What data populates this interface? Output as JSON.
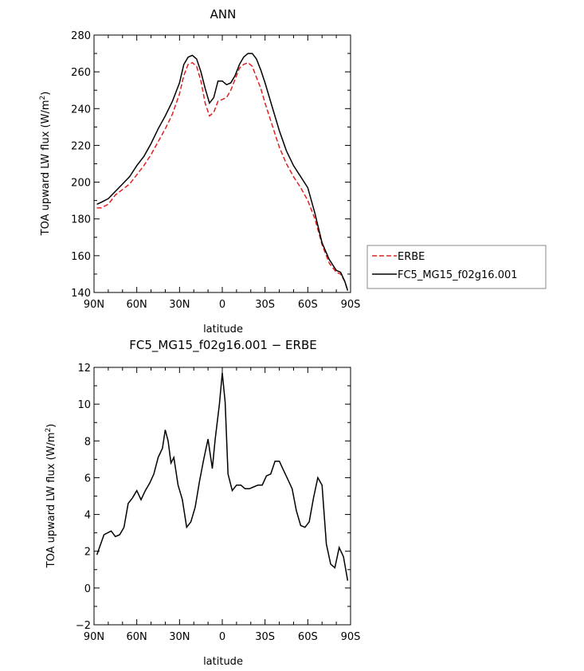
{
  "chart_data": [
    {
      "type": "line",
      "title": "ANN",
      "xlabel": "latitude",
      "ylabel": "TOA upward LW flux (W/m²)",
      "ylabel_main": "TOA upward LW flux (W/m",
      "ylabel_sup": "2",
      "ylabel_close": ")",
      "xlim": [
        90,
        -90
      ],
      "ylim": [
        140,
        280
      ],
      "xticks": [
        {
          "value": 90,
          "label": "90N"
        },
        {
          "value": 60,
          "label": "60N"
        },
        {
          "value": 30,
          "label": "30N"
        },
        {
          "value": 0,
          "label": "0"
        },
        {
          "value": -30,
          "label": "30S"
        },
        {
          "value": -60,
          "label": "60S"
        },
        {
          "value": -90,
          "label": "90S"
        }
      ],
      "yticks": [
        {
          "value": 140,
          "label": "140"
        },
        {
          "value": 160,
          "label": "160"
        },
        {
          "value": 180,
          "label": "180"
        },
        {
          "value": 200,
          "label": "200"
        },
        {
          "value": 220,
          "label": "220"
        },
        {
          "value": 240,
          "label": "240"
        },
        {
          "value": 260,
          "label": "260"
        },
        {
          "value": 280,
          "label": "280"
        }
      ],
      "legend_position": "right",
      "series": [
        {
          "name": "ERBE",
          "color": "#e02020",
          "dash": "dashed",
          "x": [
            88,
            85,
            80,
            75,
            70,
            65,
            60,
            55,
            50,
            45,
            40,
            35,
            30,
            27,
            24,
            21,
            18,
            15,
            12,
            9,
            6,
            3,
            0,
            -3,
            -6,
            -9,
            -12,
            -15,
            -18,
            -21,
            -24,
            -27,
            -30,
            -35,
            -40,
            -45,
            -50,
            -55,
            -60,
            -65,
            -70,
            -75,
            -80,
            -83,
            -86,
            -88
          ],
          "y": [
            186,
            186,
            188,
            193,
            196,
            199,
            204,
            209,
            215,
            222,
            229,
            237,
            248,
            258,
            264,
            265,
            263,
            255,
            243,
            236,
            238,
            244,
            245,
            246,
            250,
            256,
            262,
            264,
            265,
            263,
            257,
            251,
            243,
            231,
            219,
            210,
            203,
            197,
            190,
            180,
            166,
            156,
            151,
            150,
            146,
            141
          ]
        },
        {
          "name": "FC5_MG15_f02g16.001",
          "color": "#000000",
          "dash": "solid",
          "x": [
            88,
            85,
            80,
            75,
            70,
            65,
            60,
            55,
            50,
            45,
            40,
            35,
            30,
            27,
            24,
            21,
            18,
            15,
            12,
            9,
            6,
            3,
            0,
            -3,
            -6,
            -9,
            -12,
            -15,
            -18,
            -21,
            -24,
            -27,
            -30,
            -35,
            -40,
            -45,
            -50,
            -55,
            -60,
            -65,
            -70,
            -75,
            -80,
            -83,
            -86,
            -88
          ],
          "y": [
            188,
            189,
            191,
            195,
            199,
            203,
            209,
            214,
            221,
            229,
            236,
            244,
            254,
            264,
            268,
            269,
            267,
            260,
            251,
            243,
            246,
            255,
            255,
            253,
            254,
            258,
            264,
            268,
            270,
            270,
            267,
            261,
            254,
            241,
            228,
            217,
            209,
            203,
            197,
            183,
            167,
            158,
            152,
            151,
            146,
            141
          ]
        }
      ]
    },
    {
      "type": "line",
      "title": "FC5_MG15_f02g16.001 − ERBE",
      "xlabel": "latitude",
      "ylabel": "TOA upward LW flux (W/m²)",
      "ylabel_main": "TOA upward LW flux (W/m",
      "ylabel_sup": "2",
      "ylabel_close": ")",
      "xlim": [
        90,
        -90
      ],
      "ylim": [
        -2,
        12
      ],
      "xticks": [
        {
          "value": 90,
          "label": "90N"
        },
        {
          "value": 60,
          "label": "60N"
        },
        {
          "value": 30,
          "label": "30N"
        },
        {
          "value": 0,
          "label": "0"
        },
        {
          "value": -30,
          "label": "30S"
        },
        {
          "value": -60,
          "label": "60S"
        },
        {
          "value": -90,
          "label": "90S"
        }
      ],
      "yticks": [
        {
          "value": -2,
          "label": "−2"
        },
        {
          "value": 0,
          "label": "0"
        },
        {
          "value": 2,
          "label": "2"
        },
        {
          "value": 4,
          "label": "4"
        },
        {
          "value": 6,
          "label": "6"
        },
        {
          "value": 8,
          "label": "8"
        },
        {
          "value": 10,
          "label": "10"
        },
        {
          "value": 12,
          "label": "12"
        }
      ],
      "series": [
        {
          "color": "#000000",
          "dash": "solid",
          "x": [
            88,
            83,
            78,
            75,
            72,
            69,
            66,
            63,
            60,
            57,
            54,
            51,
            48,
            45,
            42,
            40,
            38,
            36,
            34,
            31,
            28,
            25,
            22,
            19,
            16,
            13,
            10,
            7,
            5,
            2,
            0,
            -2,
            -4,
            -7,
            -10,
            -13,
            -16,
            -19,
            -22,
            -25,
            -28,
            -31,
            -34,
            -37,
            -40,
            -43,
            -46,
            -49,
            -52,
            -55,
            -58,
            -61,
            -64,
            -67,
            -70,
            -73,
            -76,
            -79,
            -82,
            -85,
            -88
          ],
          "y": [
            1.8,
            2.9,
            3.1,
            2.8,
            2.9,
            3.3,
            4.6,
            4.9,
            5.3,
            4.8,
            5.3,
            5.7,
            6.2,
            7.1,
            7.6,
            8.6,
            8.0,
            6.8,
            7.1,
            5.6,
            4.8,
            3.3,
            3.6,
            4.4,
            5.8,
            7.0,
            8.1,
            6.5,
            8.1,
            10.0,
            11.7,
            10.1,
            6.2,
            5.3,
            5.6,
            5.6,
            5.4,
            5.4,
            5.5,
            5.6,
            5.6,
            6.1,
            6.2,
            6.9,
            6.9,
            6.4,
            5.9,
            5.4,
            4.2,
            3.4,
            3.3,
            3.6,
            4.9,
            6.0,
            5.6,
            2.4,
            1.3,
            1.1,
            2.2,
            1.7,
            0.4
          ]
        }
      ]
    }
  ]
}
